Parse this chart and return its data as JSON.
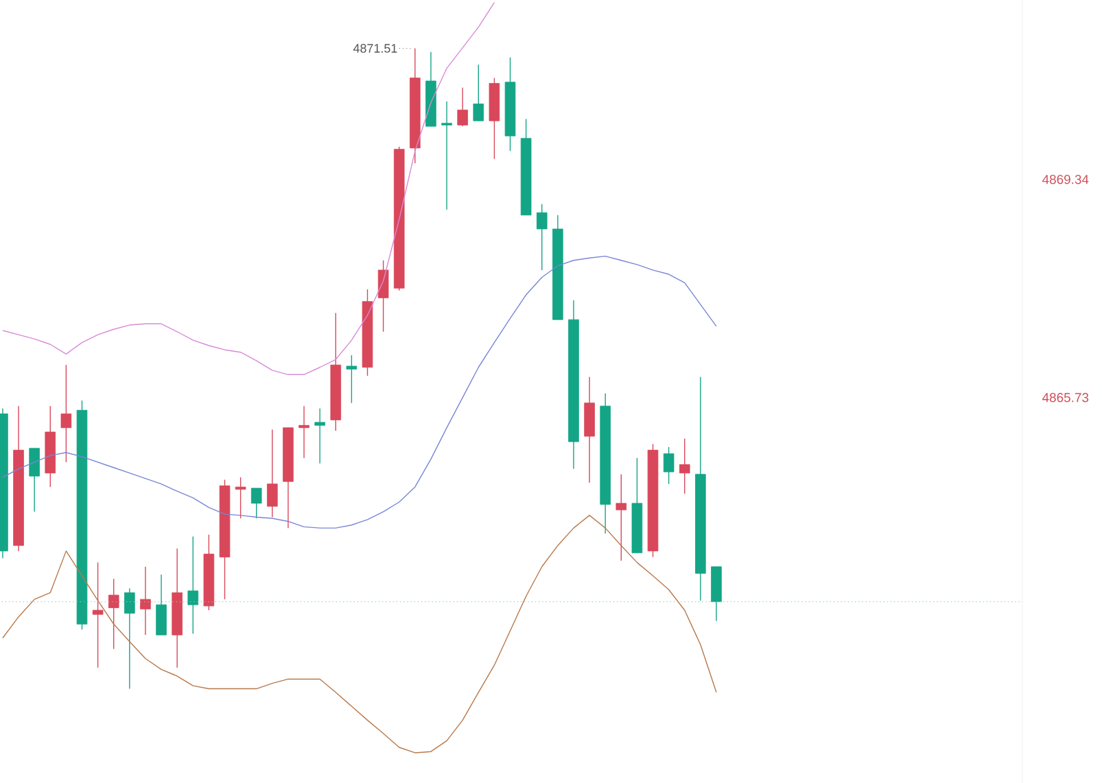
{
  "chart_data": {
    "type": "candlestick",
    "categories": [
      null,
      null,
      null,
      null,
      null,
      null,
      null,
      null,
      null,
      null,
      null,
      null,
      null,
      null,
      null,
      null,
      null,
      null,
      null,
      null,
      null,
      null,
      null,
      null,
      null,
      null,
      null,
      null,
      null,
      null,
      null,
      null,
      null,
      null,
      null,
      null,
      null,
      null,
      null,
      null,
      null,
      null,
      null,
      null,
      null,
      null
    ],
    "ohlc": [
      [
        4865.46,
        4865.55,
        4863.07,
        4863.19
      ],
      [
        4863.28,
        4865.59,
        4863.19,
        4864.86
      ],
      [
        4864.89,
        4864.89,
        4863.84,
        4864.43
      ],
      [
        4864.48,
        4865.59,
        4864.25,
        4865.16
      ],
      [
        4865.23,
        4866.27,
        4864.66,
        4865.46
      ],
      [
        4865.52,
        4865.68,
        4861.89,
        4861.98
      ],
      [
        4862.14,
        4863.0,
        4861.26,
        4862.21
      ],
      [
        4862.25,
        4862.73,
        4861.57,
        4862.46
      ],
      [
        4862.5,
        4862.57,
        4860.91,
        4862.16
      ],
      [
        4862.23,
        4862.93,
        4861.8,
        4862.39
      ],
      [
        4862.3,
        4862.8,
        4861.8,
        4861.8
      ],
      [
        4861.8,
        4863.23,
        4861.26,
        4862.5
      ],
      [
        4862.53,
        4863.43,
        4861.82,
        4862.3
      ],
      [
        4862.28,
        4863.46,
        4862.21,
        4863.14
      ],
      [
        4863.09,
        4864.37,
        4862.39,
        4864.27
      ],
      [
        4864.21,
        4864.41,
        4863.73,
        4864.25
      ],
      [
        4864.23,
        4864.23,
        4863.73,
        4863.98
      ],
      [
        4863.93,
        4865.2,
        4863.75,
        4864.3
      ],
      [
        4864.34,
        4865.23,
        4863.57,
        4865.23
      ],
      [
        4865.23,
        4865.59,
        4864.73,
        4865.27
      ],
      [
        4865.32,
        4865.55,
        4864.64,
        4865.27
      ],
      [
        4865.36,
        4867.13,
        4865.18,
        4866.27
      ],
      [
        4866.25,
        4866.43,
        4865.64,
        4866.2
      ],
      [
        4866.23,
        4867.52,
        4866.09,
        4867.32
      ],
      [
        4867.38,
        4868.0,
        4866.82,
        4867.84
      ],
      [
        4867.54,
        4869.88,
        4867.5,
        4869.84
      ],
      [
        4869.86,
        4871.51,
        4869.61,
        4871.02
      ],
      [
        4870.97,
        4871.45,
        4870.22,
        4870.22
      ],
      [
        4870.27,
        4870.63,
        4868.84,
        4870.24
      ],
      [
        4870.24,
        4870.86,
        4870.22,
        4870.49
      ],
      [
        4870.59,
        4871.24,
        4870.31,
        4870.31
      ],
      [
        4870.31,
        4871.02,
        4869.68,
        4870.93
      ],
      [
        4870.95,
        4871.36,
        4869.81,
        4870.06
      ],
      [
        4870.02,
        4870.34,
        4868.75,
        4868.75
      ],
      [
        4868.79,
        4868.93,
        4867.84,
        4868.52
      ],
      [
        4868.52,
        4868.75,
        4867.02,
        4867.02
      ],
      [
        4867.02,
        4867.34,
        4864.55,
        4865.0
      ],
      [
        4865.09,
        4866.07,
        4864.32,
        4865.64
      ],
      [
        4865.59,
        4865.8,
        4863.48,
        4863.96
      ],
      [
        4863.87,
        4864.46,
        4863.03,
        4863.98
      ],
      [
        4863.98,
        4864.73,
        4863.16,
        4863.16
      ],
      [
        4863.19,
        4864.96,
        4863.09,
        4864.86
      ],
      [
        4864.8,
        4864.91,
        4864.3,
        4864.5
      ],
      [
        4864.48,
        4865.05,
        4864.14,
        4864.62
      ],
      [
        4864.46,
        4866.07,
        4862.37,
        4862.82
      ],
      [
        4862.93,
        4862.93,
        4862.03,
        4862.35
      ]
    ],
    "colors": [
      "#13a586",
      "#d9475a",
      "#13a586",
      "#d9475a",
      "#d9475a",
      "#13a586",
      "#d9475a",
      "#d9475a",
      "#13a586",
      "#d9475a",
      "#13a586",
      "#d9475a",
      "#13a586",
      "#d9475a",
      "#d9475a",
      "#d9475a",
      "#13a586",
      "#d9475a",
      "#d9475a",
      "#d9475a",
      "#13a586",
      "#d9475a",
      "#13a586",
      "#d9475a",
      "#d9475a",
      "#d9475a",
      "#d9475a",
      "#13a586",
      "#13a586",
      "#d9475a",
      "#13a586",
      "#d9475a",
      "#13a586",
      "#13a586",
      "#13a586",
      "#13a586",
      "#13a586",
      "#d9475a",
      "#13a586",
      "#d9475a",
      "#13a586",
      "#d9475a",
      "#13a586",
      "#d9475a",
      "#13a586",
      "#13a586"
    ],
    "series": [
      {
        "type": "line",
        "color": "#d88ad6",
        "values": [
          4866.84,
          4866.77,
          4866.7,
          4866.61,
          4866.45,
          4866.64,
          4866.77,
          4866.86,
          4866.93,
          4866.95,
          4866.95,
          4866.82,
          4866.68,
          4866.59,
          4866.52,
          4866.48,
          4866.34,
          4866.18,
          4866.11,
          4866.11,
          4866.23,
          4866.36,
          4866.68,
          4867.09,
          4867.66,
          4868.68,
          4869.81,
          4870.61,
          4871.18,
          4871.52,
          4871.86,
          4872.27,
          null,
          null,
          null,
          null,
          null,
          null,
          null,
          null,
          null,
          null,
          null,
          null,
          null,
          null
        ]
      },
      {
        "type": "line",
        "color": "#7986d6",
        "values": [
          4864.41,
          4864.55,
          4864.66,
          4864.77,
          4864.82,
          4864.75,
          4864.66,
          4864.57,
          4864.48,
          4864.39,
          4864.3,
          4864.18,
          4864.07,
          4863.91,
          4863.8,
          4863.78,
          4863.75,
          4863.73,
          4863.68,
          4863.59,
          4863.57,
          4863.57,
          4863.62,
          4863.71,
          4863.84,
          4864.0,
          4864.25,
          4864.71,
          4865.23,
          4865.73,
          4866.23,
          4866.64,
          4867.04,
          4867.43,
          4867.72,
          4867.91,
          4868.0,
          4868.04,
          4868.07,
          4868.0,
          4867.93,
          4867.84,
          4867.77,
          4867.63,
          4867.27,
          4866.91
        ]
      },
      {
        "type": "line",
        "color": "#b8784a",
        "values": [
          4861.75,
          4862.1,
          4862.39,
          4862.5,
          4863.19,
          4862.78,
          4862.37,
          4861.98,
          4861.69,
          4861.41,
          4861.23,
          4861.12,
          4860.96,
          4860.91,
          4860.91,
          4860.91,
          4860.91,
          4861.0,
          4861.07,
          4861.07,
          4861.07,
          4860.85,
          4860.62,
          4860.39,
          4860.17,
          4859.94,
          4859.85,
          4859.87,
          4860.05,
          4860.39,
          4860.85,
          4861.3,
          4861.87,
          4862.44,
          4862.93,
          4863.28,
          4863.57,
          4863.78,
          4863.57,
          4863.28,
          4863.0,
          4862.78,
          4862.55,
          4862.21,
          4861.64,
          4860.85
        ]
      }
    ],
    "ylim": [
      4859.35,
      4872.31
    ],
    "yticks": [
      4869.34,
      4865.73
    ],
    "tick_labels": "y",
    "grid": false,
    "ref_lines": [
      {
        "axis": "y",
        "value": 4862.35,
        "color": "#7fd3bd",
        "line_style": "dotted"
      }
    ],
    "annotations": [
      "4871.51"
    ]
  }
}
